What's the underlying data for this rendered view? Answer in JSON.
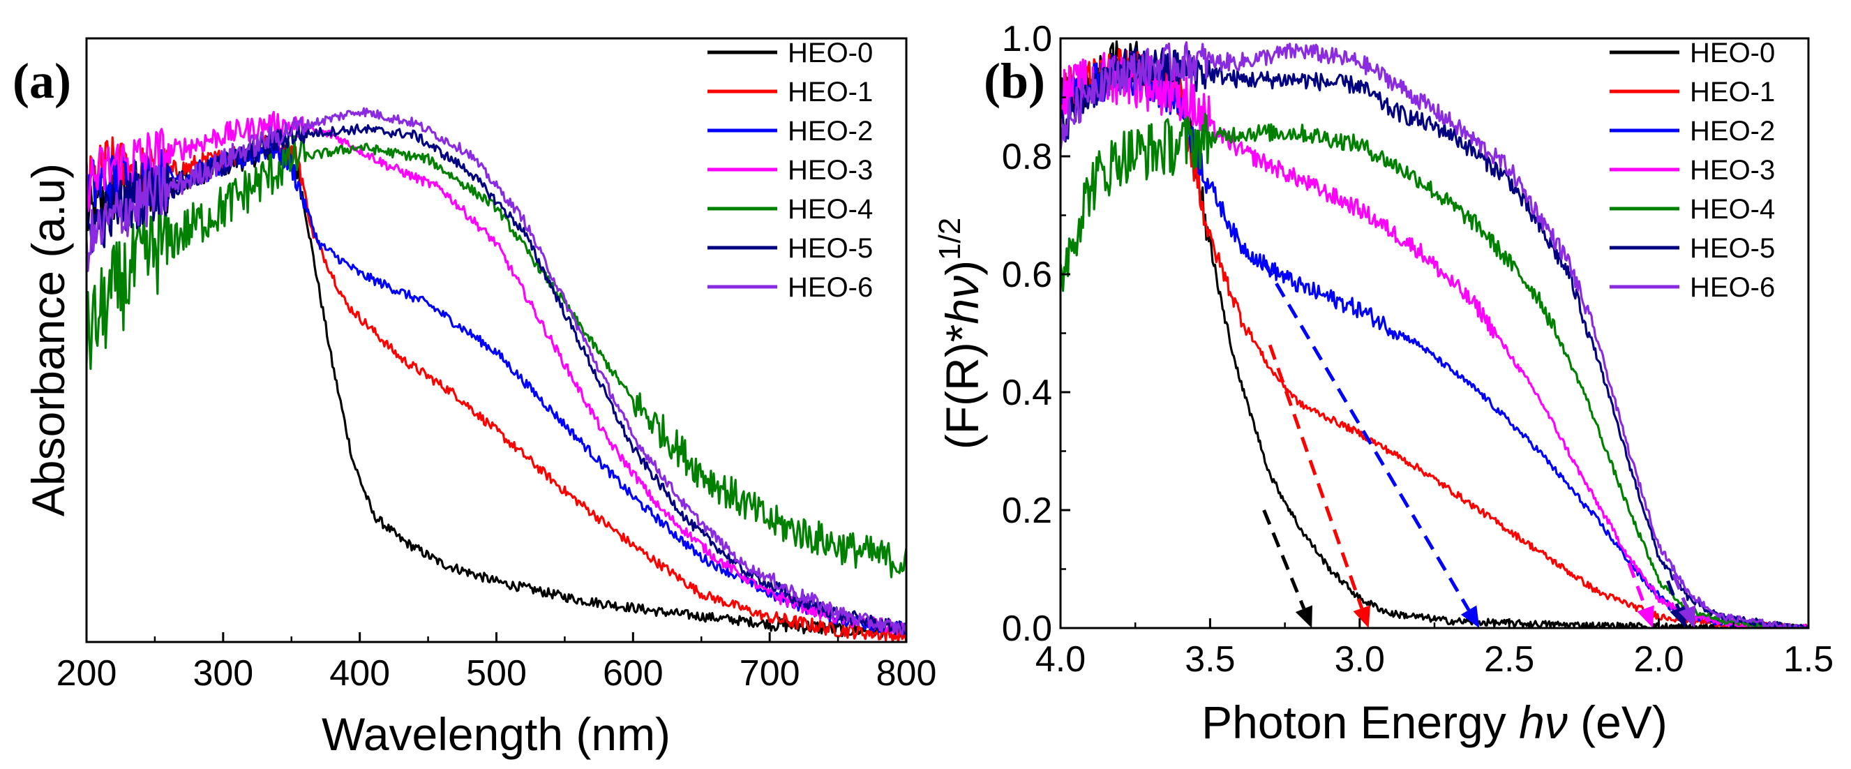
{
  "chart_data": [
    {
      "type": "line",
      "panel_label": "(a)",
      "xlabel": "Wavelength (nm)",
      "ylabel": "Absorbance (a.u)",
      "xlim": [
        200,
        800
      ],
      "ylim": [
        0,
        1
      ],
      "xticks": [
        "200",
        "300",
        "400",
        "500",
        "600",
        "700",
        "800"
      ],
      "yticks": [],
      "series": [
        {
          "name": "HEO-0",
          "color": "#000000",
          "points": [
            [
              200,
              0.7
            ],
            [
              220,
              0.74
            ],
            [
              260,
              0.76
            ],
            [
              300,
              0.79
            ],
            [
              340,
              0.82
            ],
            [
              355,
              0.78
            ],
            [
              365,
              0.65
            ],
            [
              380,
              0.46
            ],
            [
              395,
              0.3
            ],
            [
              410,
              0.21
            ],
            [
              430,
              0.17
            ],
            [
              460,
              0.13
            ],
            [
              500,
              0.1
            ],
            [
              560,
              0.07
            ],
            [
              620,
              0.05
            ],
            [
              700,
              0.03
            ],
            [
              760,
              0.02
            ],
            [
              800,
              0.02
            ]
          ]
        },
        {
          "name": "HEO-1",
          "color": "#ff0000",
          "points": [
            [
              200,
              0.75
            ],
            [
              215,
              0.79
            ],
            [
              250,
              0.77
            ],
            [
              300,
              0.8
            ],
            [
              340,
              0.83
            ],
            [
              355,
              0.8
            ],
            [
              365,
              0.68
            ],
            [
              390,
              0.56
            ],
            [
              430,
              0.47
            ],
            [
              470,
              0.41
            ],
            [
              500,
              0.35
            ],
            [
              550,
              0.25
            ],
            [
              600,
              0.16
            ],
            [
              650,
              0.08
            ],
            [
              700,
              0.04
            ],
            [
              750,
              0.02
            ],
            [
              800,
              0.01
            ]
          ]
        },
        {
          "name": "HEO-2",
          "color": "#0000ff",
          "points": [
            [
              200,
              0.75
            ],
            [
              230,
              0.77
            ],
            [
              270,
              0.77
            ],
            [
              300,
              0.79
            ],
            [
              335,
              0.82
            ],
            [
              350,
              0.79
            ],
            [
              370,
              0.66
            ],
            [
              400,
              0.61
            ],
            [
              450,
              0.56
            ],
            [
              500,
              0.48
            ],
            [
              550,
              0.36
            ],
            [
              600,
              0.24
            ],
            [
              650,
              0.14
            ],
            [
              700,
              0.08
            ],
            [
              750,
              0.04
            ],
            [
              800,
              0.02
            ]
          ]
        },
        {
          "name": "HEO-3",
          "color": "#ff00ff",
          "points": [
            [
              200,
              0.76
            ],
            [
              220,
              0.79
            ],
            [
              260,
              0.81
            ],
            [
              300,
              0.84
            ],
            [
              340,
              0.86
            ],
            [
              380,
              0.84
            ],
            [
              420,
              0.79
            ],
            [
              460,
              0.75
            ],
            [
              500,
              0.66
            ],
            [
              540,
              0.5
            ],
            [
              580,
              0.34
            ],
            [
              620,
              0.22
            ],
            [
              660,
              0.14
            ],
            [
              700,
              0.08
            ],
            [
              750,
              0.04
            ],
            [
              800,
              0.02
            ]
          ]
        },
        {
          "name": "HEO-4",
          "color": "#008000",
          "points": [
            [
              200,
              0.5
            ],
            [
              220,
              0.58
            ],
            [
              250,
              0.65
            ],
            [
              300,
              0.72
            ],
            [
              350,
              0.8
            ],
            [
              400,
              0.82
            ],
            [
              450,
              0.8
            ],
            [
              500,
              0.72
            ],
            [
              550,
              0.56
            ],
            [
              600,
              0.4
            ],
            [
              650,
              0.28
            ],
            [
              700,
              0.2
            ],
            [
              750,
              0.16
            ],
            [
              800,
              0.13
            ]
          ]
        },
        {
          "name": "HEO-5",
          "color": "#000080",
          "points": [
            [
              200,
              0.68
            ],
            [
              230,
              0.73
            ],
            [
              270,
              0.76
            ],
            [
              310,
              0.8
            ],
            [
              350,
              0.84
            ],
            [
              400,
              0.85
            ],
            [
              440,
              0.84
            ],
            [
              480,
              0.78
            ],
            [
              520,
              0.68
            ],
            [
              560,
              0.5
            ],
            [
              600,
              0.32
            ],
            [
              640,
              0.2
            ],
            [
              680,
              0.12
            ],
            [
              720,
              0.07
            ],
            [
              760,
              0.04
            ],
            [
              800,
              0.02
            ]
          ]
        },
        {
          "name": "HEO-6",
          "color": "#8a2be2",
          "points": [
            [
              200,
              0.66
            ],
            [
              230,
              0.72
            ],
            [
              270,
              0.76
            ],
            [
              310,
              0.81
            ],
            [
              350,
              0.85
            ],
            [
              400,
              0.88
            ],
            [
              440,
              0.86
            ],
            [
              480,
              0.81
            ],
            [
              520,
              0.7
            ],
            [
              560,
              0.52
            ],
            [
              600,
              0.34
            ],
            [
              640,
              0.22
            ],
            [
              680,
              0.13
            ],
            [
              720,
              0.08
            ],
            [
              760,
              0.04
            ],
            [
              800,
              0.02
            ]
          ]
        }
      ],
      "legend_position": "top-right"
    },
    {
      "type": "line",
      "panel_label": "(b)",
      "xlabel_text": "Photon Energy ",
      "xlabel_symbol": "hν",
      "xlabel_unit": " (eV)",
      "ylabel_text": "(F(R)*",
      "ylabel_symbol": "hν",
      "ylabel_close": ")",
      "ylabel_sup": "1/2",
      "xlim": [
        4.0,
        1.5
      ],
      "ylim": [
        0.0,
        1.0
      ],
      "xticks": [
        "4.0",
        "3.5",
        "3.0",
        "2.5",
        "2.0",
        "1.5"
      ],
      "yticks": [
        "0.0",
        "0.2",
        "0.4",
        "0.6",
        "0.8",
        "1.0"
      ],
      "series": [
        {
          "name": "HEO-0",
          "color": "#000000",
          "points": [
            [
              4.0,
              0.9
            ],
            [
              3.9,
              0.92
            ],
            [
              3.8,
              0.97
            ],
            [
              3.7,
              0.95
            ],
            [
              3.6,
              0.92
            ],
            [
              3.55,
              0.8
            ],
            [
              3.5,
              0.65
            ],
            [
              3.45,
              0.52
            ],
            [
              3.4,
              0.42
            ],
            [
              3.35,
              0.34
            ],
            [
              3.3,
              0.26
            ],
            [
              3.2,
              0.17
            ],
            [
              3.1,
              0.1
            ],
            [
              3.0,
              0.05
            ],
            [
              2.9,
              0.025
            ],
            [
              2.7,
              0.012
            ],
            [
              2.5,
              0.008
            ],
            [
              2.2,
              0.004
            ],
            [
              1.9,
              0.002
            ],
            [
              1.55,
              0.0
            ]
          ]
        },
        {
          "name": "HEO-1",
          "color": "#ff0000",
          "points": [
            [
              4.0,
              0.91
            ],
            [
              3.9,
              0.93
            ],
            [
              3.8,
              0.95
            ],
            [
              3.7,
              0.94
            ],
            [
              3.6,
              0.9
            ],
            [
              3.55,
              0.78
            ],
            [
              3.5,
              0.66
            ],
            [
              3.4,
              0.53
            ],
            [
              3.3,
              0.44
            ],
            [
              3.2,
              0.38
            ],
            [
              3.0,
              0.33
            ],
            [
              2.8,
              0.27
            ],
            [
              2.6,
              0.2
            ],
            [
              2.4,
              0.13
            ],
            [
              2.2,
              0.06
            ],
            [
              2.0,
              0.02
            ],
            [
              1.8,
              0.008
            ],
            [
              1.55,
              0.0
            ]
          ]
        },
        {
          "name": "HEO-2",
          "color": "#0000ff",
          "points": [
            [
              4.0,
              0.9
            ],
            [
              3.9,
              0.92
            ],
            [
              3.8,
              0.94
            ],
            [
              3.7,
              0.93
            ],
            [
              3.6,
              0.89
            ],
            [
              3.5,
              0.75
            ],
            [
              3.4,
              0.65
            ],
            [
              3.3,
              0.61
            ],
            [
              3.2,
              0.58
            ],
            [
              3.0,
              0.54
            ],
            [
              2.8,
              0.48
            ],
            [
              2.6,
              0.4
            ],
            [
              2.4,
              0.3
            ],
            [
              2.2,
              0.18
            ],
            [
              2.05,
              0.08
            ],
            [
              1.95,
              0.03
            ],
            [
              1.8,
              0.01
            ],
            [
              1.55,
              0.0
            ]
          ]
        },
        {
          "name": "HEO-3",
          "color": "#ff00ff",
          "points": [
            [
              4.0,
              0.9
            ],
            [
              3.9,
              0.92
            ],
            [
              3.8,
              0.94
            ],
            [
              3.6,
              0.91
            ],
            [
              3.5,
              0.85
            ],
            [
              3.4,
              0.81
            ],
            [
              3.2,
              0.76
            ],
            [
              3.0,
              0.71
            ],
            [
              2.8,
              0.64
            ],
            [
              2.6,
              0.54
            ],
            [
              2.4,
              0.39
            ],
            [
              2.25,
              0.25
            ],
            [
              2.1,
              0.12
            ],
            [
              2.0,
              0.05
            ],
            [
              1.9,
              0.02
            ],
            [
              1.75,
              0.008
            ],
            [
              1.55,
              0.0
            ]
          ]
        },
        {
          "name": "HEO-4",
          "color": "#008000",
          "points": [
            [
              4.0,
              0.6
            ],
            [
              3.9,
              0.75
            ],
            [
              3.8,
              0.8
            ],
            [
              3.6,
              0.82
            ],
            [
              3.4,
              0.84
            ],
            [
              3.2,
              0.84
            ],
            [
              3.0,
              0.82
            ],
            [
              2.8,
              0.76
            ],
            [
              2.6,
              0.68
            ],
            [
              2.4,
              0.56
            ],
            [
              2.25,
              0.4
            ],
            [
              2.1,
              0.2
            ],
            [
              2.0,
              0.08
            ],
            [
              1.9,
              0.03
            ],
            [
              1.75,
              0.01
            ],
            [
              1.55,
              0.0
            ]
          ]
        },
        {
          "name": "HEO-5",
          "color": "#000080",
          "points": [
            [
              4.0,
              0.85
            ],
            [
              3.9,
              0.91
            ],
            [
              3.8,
              0.95
            ],
            [
              3.6,
              0.95
            ],
            [
              3.4,
              0.93
            ],
            [
              3.2,
              0.93
            ],
            [
              3.0,
              0.92
            ],
            [
              2.9,
              0.88
            ],
            [
              2.7,
              0.84
            ],
            [
              2.5,
              0.76
            ],
            [
              2.3,
              0.6
            ],
            [
              2.2,
              0.45
            ],
            [
              2.1,
              0.28
            ],
            [
              2.0,
              0.12
            ],
            [
              1.9,
              0.05
            ],
            [
              1.8,
              0.02
            ],
            [
              1.65,
              0.008
            ],
            [
              1.55,
              0.0
            ]
          ]
        },
        {
          "name": "HEO-6",
          "color": "#8a2be2",
          "points": [
            [
              4.0,
              0.84
            ],
            [
              3.9,
              0.92
            ],
            [
              3.8,
              0.94
            ],
            [
              3.6,
              0.96
            ],
            [
              3.4,
              0.96
            ],
            [
              3.2,
              0.98
            ],
            [
              3.0,
              0.96
            ],
            [
              2.9,
              0.93
            ],
            [
              2.7,
              0.86
            ],
            [
              2.5,
              0.78
            ],
            [
              2.3,
              0.62
            ],
            [
              2.2,
              0.48
            ],
            [
              2.1,
              0.3
            ],
            [
              2.0,
              0.14
            ],
            [
              1.9,
              0.06
            ],
            [
              1.8,
              0.02
            ],
            [
              1.65,
              0.008
            ],
            [
              1.55,
              0.0
            ]
          ]
        }
      ],
      "tangent_lines": [
        {
          "color": "#000000",
          "from": [
            3.32,
            0.2
          ],
          "to": [
            3.16,
            0.0
          ]
        },
        {
          "color": "#ff0000",
          "from": [
            3.3,
            0.48
          ],
          "to": [
            2.97,
            0.0
          ]
        },
        {
          "color": "#0000ff",
          "from": [
            3.32,
            0.62
          ],
          "to": [
            2.6,
            0.0
          ]
        },
        {
          "color": "#ff00ff",
          "from": [
            2.1,
            0.11
          ],
          "to": [
            2.02,
            0.0
          ]
        },
        {
          "color": "#000080",
          "from": [
            1.97,
            0.08
          ],
          "to": [
            1.91,
            0.0
          ]
        },
        {
          "color": "#8a2be2",
          "from": [
            1.95,
            0.09
          ],
          "to": [
            1.88,
            0.0
          ]
        }
      ],
      "legend_position": "top-right"
    }
  ]
}
